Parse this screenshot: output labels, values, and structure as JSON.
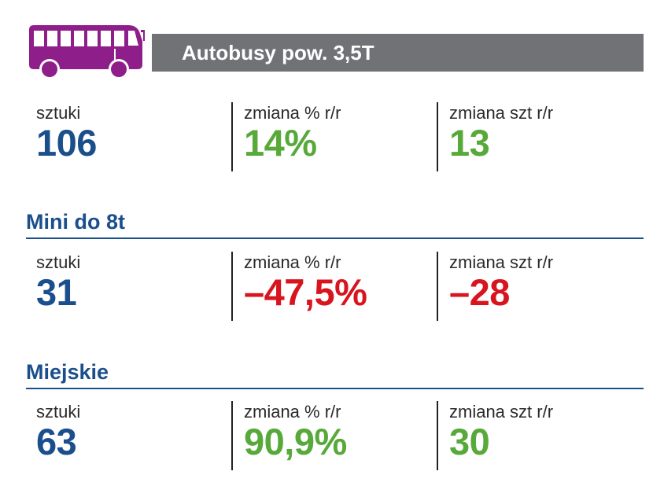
{
  "header": {
    "title": "Autobusy pow. 3,5T",
    "icon": "bus-icon",
    "icon_color": "#8e1e8a",
    "bar_color": "#707275"
  },
  "colors": {
    "primary_blue": "#1a4f8c",
    "positive_green": "#57a93a",
    "negative_red": "#d8141e",
    "label_text": "#2a2a2a"
  },
  "sections": [
    {
      "title": "",
      "stats": [
        {
          "label": "sztuki",
          "value": "106",
          "color": "#1a4f8c"
        },
        {
          "label": "zmiana % r/r",
          "value": "14%",
          "color": "#57a93a"
        },
        {
          "label": "zmiana szt r/r",
          "value": "13",
          "color": "#57a93a"
        }
      ]
    },
    {
      "title": "Mini do 8t",
      "stats": [
        {
          "label": "sztuki",
          "value": "31",
          "color": "#1a4f8c"
        },
        {
          "label": "zmiana % r/r",
          "value": "–47,5%",
          "color": "#d8141e"
        },
        {
          "label": "zmiana szt r/r",
          "value": "–28",
          "color": "#d8141e"
        }
      ]
    },
    {
      "title": "Miejskie",
      "stats": [
        {
          "label": "sztuki",
          "value": "63",
          "color": "#1a4f8c"
        },
        {
          "label": "zmiana % r/r",
          "value": "90,9%",
          "color": "#57a93a"
        },
        {
          "label": "zmiana szt r/r",
          "value": "30",
          "color": "#57a93a"
        }
      ]
    }
  ]
}
